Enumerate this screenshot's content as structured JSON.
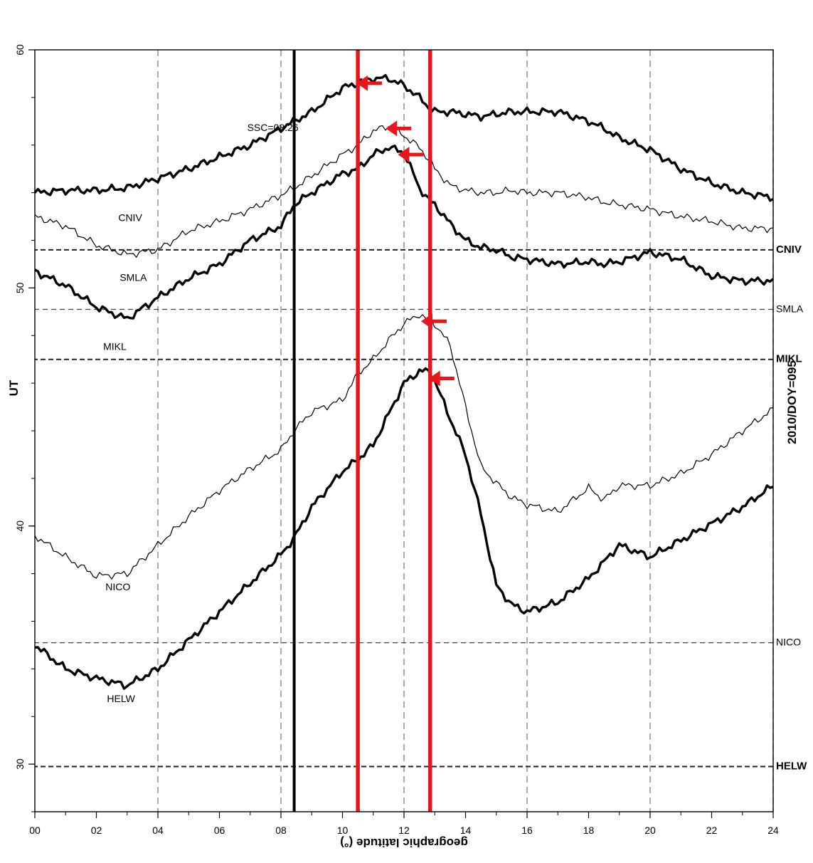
{
  "chart_data": {
    "type": "line",
    "title": "2010/DOY=095",
    "xlabel": "UT",
    "ylabel": "geographic latitude (°)",
    "xlim": [
      0,
      24
    ],
    "ylim": [
      28,
      60
    ],
    "x_ticks": [
      "00",
      "02",
      "04",
      "06",
      "08",
      "10",
      "12",
      "14",
      "16",
      "18",
      "20",
      "22",
      "24"
    ],
    "y_ticks": [
      "30",
      "40",
      "50",
      "60"
    ],
    "grid": true,
    "x": [
      0,
      1,
      2,
      3,
      4,
      5,
      6,
      7,
      8,
      8.43,
      9,
      10,
      10.5,
      11,
      11.5,
      12,
      12.5,
      12.8,
      13,
      13.5,
      14,
      14.5,
      15,
      15.5,
      16,
      17,
      18,
      18.5,
      19,
      20,
      21,
      22,
      23,
      24
    ],
    "series": [
      {
        "name": "CNIV",
        "weight": "bold",
        "values": [
          54.0,
          54.1,
          54.1,
          54.2,
          54.6,
          55.0,
          55.5,
          56.0,
          56.7,
          57.0,
          57.4,
          58.4,
          58.6,
          58.8,
          58.8,
          58.5,
          58.0,
          57.6,
          57.4,
          57.4,
          57.3,
          57.2,
          57.3,
          57.4,
          57.4,
          57.4,
          57.0,
          56.7,
          56.3,
          55.8,
          55.0,
          54.4,
          54.0,
          53.8
        ]
      },
      {
        "name": "SMLA",
        "weight": "thin",
        "values": [
          53.0,
          52.6,
          51.8,
          51.4,
          51.6,
          52.4,
          52.8,
          53.3,
          53.9,
          54.2,
          54.7,
          55.6,
          56.0,
          56.6,
          56.8,
          56.4,
          55.9,
          55.4,
          55.0,
          54.3,
          54.1,
          54.0,
          54.0,
          54.1,
          54.0,
          54.0,
          53.8,
          53.6,
          53.5,
          53.3,
          53.0,
          52.8,
          52.5,
          52.5
        ]
      },
      {
        "name": "MIKL",
        "weight": "bold",
        "values": [
          50.7,
          50.1,
          49.2,
          48.7,
          49.6,
          50.4,
          51.0,
          52.0,
          52.6,
          53.5,
          54.0,
          54.8,
          55.0,
          55.6,
          55.9,
          55.7,
          54.2,
          53.7,
          53.5,
          52.7,
          52.0,
          51.7,
          51.6,
          51.3,
          51.2,
          51.0,
          51.1,
          51.0,
          51.1,
          51.5,
          51.2,
          50.5,
          50.3,
          50.3
        ]
      },
      {
        "name": "NICO",
        "weight": "thin",
        "values": [
          39.6,
          38.7,
          37.9,
          38.0,
          39.2,
          40.4,
          41.5,
          42.4,
          43.2,
          44.0,
          44.8,
          45.3,
          46.4,
          47.0,
          47.8,
          48.5,
          48.9,
          48.6,
          48.5,
          47.6,
          45.0,
          42.5,
          41.8,
          41.2,
          40.9,
          40.6,
          41.6,
          41.1,
          41.7,
          41.7,
          42.2,
          43.0,
          44.0,
          44.9
        ]
      },
      {
        "name": "HELW",
        "weight": "bold",
        "values": [
          35.0,
          34.0,
          33.6,
          33.3,
          34.0,
          35.2,
          36.4,
          37.6,
          38.8,
          39.5,
          40.8,
          42.3,
          42.8,
          43.4,
          44.7,
          46.0,
          46.5,
          46.5,
          46.1,
          44.5,
          43.0,
          40.5,
          37.5,
          36.7,
          36.4,
          36.8,
          37.8,
          38.5,
          39.2,
          38.7,
          39.4,
          40.1,
          40.8,
          41.7
        ]
      }
    ],
    "station_lines": [
      {
        "name": "CNIV",
        "lat": 51.6,
        "style": "bold-dashed"
      },
      {
        "name": "SMLA",
        "lat": 49.1,
        "style": "dashed"
      },
      {
        "name": "MIKL",
        "lat": 47.0,
        "style": "bold-dashed"
      },
      {
        "name": "NICO",
        "lat": 35.1,
        "style": "dashed"
      },
      {
        "name": "HELW",
        "lat": 29.9,
        "style": "bold-dashed"
      }
    ],
    "ssc": {
      "ut": 8.43,
      "label": "SSC=08:26",
      "color": "#000000"
    },
    "event_lines": [
      {
        "ut": 10.5,
        "color": "#e8161c"
      },
      {
        "ut": 12.85,
        "color": "#e8161c"
      }
    ],
    "arrows": [
      {
        "ut": 10.5,
        "lat": 58.6,
        "color": "#e8161c"
      },
      {
        "ut": 11.45,
        "lat": 56.7,
        "color": "#e8161c"
      },
      {
        "ut": 11.85,
        "lat": 55.6,
        "color": "#e8161c"
      },
      {
        "ut": 12.6,
        "lat": 48.6,
        "color": "#e8161c"
      },
      {
        "ut": 12.85,
        "lat": 46.2,
        "color": "#e8161c"
      }
    ],
    "curve_labels": [
      {
        "text": "CNIV",
        "ut": 3.1,
        "lat": 52.8
      },
      {
        "text": "SMLA",
        "ut": 3.2,
        "lat": 50.3
      },
      {
        "text": "MIKL",
        "ut": 2.6,
        "lat": 47.4
      },
      {
        "text": "NICO",
        "ut": 2.7,
        "lat": 37.3
      },
      {
        "text": "HELW",
        "ut": 2.8,
        "lat": 32.6
      }
    ]
  }
}
